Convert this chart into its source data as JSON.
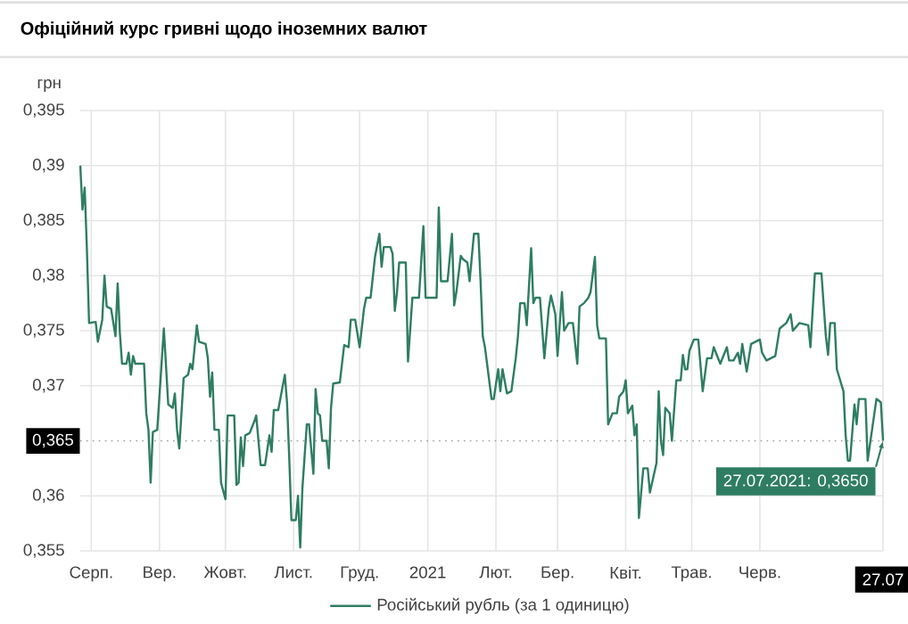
{
  "chart_data": {
    "type": "line",
    "title": "Офіційний курс гривні щодо іноземних валют",
    "ylabel": "грн",
    "xlim": [
      "2020-07-27",
      "2021-07-27"
    ],
    "ylim": [
      0.355,
      0.395
    ],
    "xticks": [
      {
        "value": "2020-08-01",
        "label": "Серп."
      },
      {
        "value": "2020-09-01",
        "label": "Вер."
      },
      {
        "value": "2020-10-01",
        "label": "Жовт."
      },
      {
        "value": "2020-11-01",
        "label": "Лист."
      },
      {
        "value": "2020-12-01",
        "label": "Груд."
      },
      {
        "value": "2021-01-01",
        "label": "2021"
      },
      {
        "value": "2021-02-01",
        "label": "Лют."
      },
      {
        "value": "2021-03-01",
        "label": "Бер."
      },
      {
        "value": "2021-04-01",
        "label": "Квіт."
      },
      {
        "value": "2021-05-01",
        "label": "Трав."
      },
      {
        "value": "2021-06-01",
        "label": "Черв."
      },
      {
        "value": "2021-07-27",
        "label": "27.07"
      }
    ],
    "yticks": [
      {
        "value": 0.355,
        "label": "0,355"
      },
      {
        "value": 0.36,
        "label": "0,36"
      },
      {
        "value": 0.37,
        "label": "0,37"
      },
      {
        "value": 0.375,
        "label": "0,375"
      },
      {
        "value": 0.38,
        "label": "0,38"
      },
      {
        "value": 0.385,
        "label": "0,385"
      },
      {
        "value": 0.39,
        "label": "0,39"
      },
      {
        "value": 0.395,
        "label": "0,395"
      }
    ],
    "grid": true,
    "legend": "bottom",
    "line_style": "solid",
    "ref_lines": [
      {
        "axis": "y",
        "value": 0.365,
        "label": "0,365",
        "color": "#9e9e9e",
        "line_style": "dotted"
      }
    ],
    "annotations": [
      {
        "text": "27.07.2021: 0,3650",
        "x": "2021-07-27",
        "y": 0.365
      }
    ],
    "series": [
      {
        "name": "Російський рубль (за 1 одиницю)",
        "color": "#2e7d62",
        "x": [
          "2020-07-27",
          "2020-07-28",
          "2020-07-29",
          "2020-07-30",
          "2020-07-31",
          "2020-08-03",
          "2020-08-04",
          "2020-08-06",
          "2020-08-07",
          "2020-08-08",
          "2020-08-10",
          "2020-08-12",
          "2020-08-13",
          "2020-08-14",
          "2020-08-15",
          "2020-08-17",
          "2020-08-18",
          "2020-08-19",
          "2020-08-20",
          "2020-08-21",
          "2020-08-25",
          "2020-08-26",
          "2020-08-27",
          "2020-08-28",
          "2020-08-29",
          "2020-08-31",
          "2020-09-03",
          "2020-09-05",
          "2020-09-07",
          "2020-09-08",
          "2020-09-09",
          "2020-09-10",
          "2020-09-12",
          "2020-09-14",
          "2020-09-15",
          "2020-09-16",
          "2020-09-18",
          "2020-09-19",
          "2020-09-22",
          "2020-09-23",
          "2020-09-24",
          "2020-09-25",
          "2020-09-26",
          "2020-09-28",
          "2020-09-29",
          "2020-10-01",
          "2020-10-02",
          "2020-10-05",
          "2020-10-06",
          "2020-10-07",
          "2020-10-08",
          "2020-10-09",
          "2020-10-10",
          "2020-10-12",
          "2020-10-14",
          "2020-10-15",
          "2020-10-17",
          "2020-10-19",
          "2020-10-21",
          "2020-10-22",
          "2020-10-23",
          "2020-10-25",
          "2020-10-28",
          "2020-10-29",
          "2020-10-30",
          "2020-10-31",
          "2020-11-02",
          "2020-11-03",
          "2020-11-04",
          "2020-11-05",
          "2020-11-07",
          "2020-11-08",
          "2020-11-10",
          "2020-11-11",
          "2020-11-12",
          "2020-11-13",
          "2020-11-14",
          "2020-11-16",
          "2020-11-17",
          "2020-11-18",
          "2020-11-19",
          "2020-11-22",
          "2020-11-24",
          "2020-11-26",
          "2020-11-27",
          "2020-11-29",
          "2020-12-01",
          "2020-12-03",
          "2020-12-04",
          "2020-12-06",
          "2020-12-08",
          "2020-12-10",
          "2020-12-11",
          "2020-12-12",
          "2020-12-15",
          "2020-12-16",
          "2020-12-17",
          "2020-12-18",
          "2020-12-19",
          "2020-12-22",
          "2020-12-23",
          "2020-12-25",
          "2020-12-28",
          "2020-12-30",
          "2020-12-31",
          "2021-01-05",
          "2021-01-06",
          "2021-01-07",
          "2021-01-10",
          "2021-01-12",
          "2021-01-13",
          "2021-01-14",
          "2021-01-16",
          "2021-01-17",
          "2021-01-19",
          "2021-01-20",
          "2021-01-22",
          "2021-01-24",
          "2021-01-25",
          "2021-01-26",
          "2021-01-27",
          "2021-01-30",
          "2021-01-31",
          "2021-02-02",
          "2021-02-03",
          "2021-02-04",
          "2021-02-06",
          "2021-02-08",
          "2021-02-10",
          "2021-02-11",
          "2021-02-12",
          "2021-02-14",
          "2021-02-15",
          "2021-02-17",
          "2021-02-18",
          "2021-02-19",
          "2021-02-21",
          "2021-02-23",
          "2021-02-25",
          "2021-02-26",
          "2021-02-28",
          "2021-03-01",
          "2021-03-03",
          "2021-03-04",
          "2021-03-06",
          "2021-03-08",
          "2021-03-10",
          "2021-03-11",
          "2021-03-13",
          "2021-03-15",
          "2021-03-16",
          "2021-03-18",
          "2021-03-19",
          "2021-03-20",
          "2021-03-23",
          "2021-03-24",
          "2021-03-26",
          "2021-03-28",
          "2021-03-29",
          "2021-03-31",
          "2021-04-01",
          "2021-04-02",
          "2021-04-04",
          "2021-04-05",
          "2021-04-06",
          "2021-04-07",
          "2021-04-09",
          "2021-04-11",
          "2021-04-12",
          "2021-04-15",
          "2021-04-16",
          "2021-04-17",
          "2021-04-18",
          "2021-04-19",
          "2021-04-21",
          "2021-04-22",
          "2021-04-24",
          "2021-04-26",
          "2021-04-27",
          "2021-04-28",
          "2021-04-29",
          "2021-04-30",
          "2021-05-02",
          "2021-05-04",
          "2021-05-06",
          "2021-05-08",
          "2021-05-10",
          "2021-05-11",
          "2021-05-14",
          "2021-05-17",
          "2021-05-18",
          "2021-05-20",
          "2021-05-22",
          "2021-05-23",
          "2021-05-24",
          "2021-05-26",
          "2021-05-28",
          "2021-06-01",
          "2021-06-02",
          "2021-06-04",
          "2021-06-08",
          "2021-06-10",
          "2021-06-13",
          "2021-06-15",
          "2021-06-16",
          "2021-06-19",
          "2021-06-23",
          "2021-06-24",
          "2021-06-26",
          "2021-06-29",
          "2021-07-01",
          "2021-07-02",
          "2021-07-03",
          "2021-07-05",
          "2021-07-06",
          "2021-07-09",
          "2021-07-10",
          "2021-07-11",
          "2021-07-12",
          "2021-07-14",
          "2021-07-15",
          "2021-07-16",
          "2021-07-19",
          "2021-07-20",
          "2021-07-22",
          "2021-07-24",
          "2021-07-26",
          "2021-07-27"
        ],
        "values": [
          0.39,
          0.386,
          0.388,
          0.3825,
          0.3757,
          0.3758,
          0.374,
          0.376,
          0.38,
          0.3772,
          0.377,
          0.3745,
          0.3793,
          0.3748,
          0.372,
          0.372,
          0.373,
          0.371,
          0.3727,
          0.372,
          0.372,
          0.3675,
          0.366,
          0.3612,
          0.3658,
          0.366,
          0.3752,
          0.3683,
          0.368,
          0.3693,
          0.366,
          0.3643,
          0.3707,
          0.371,
          0.372,
          0.3715,
          0.3755,
          0.374,
          0.3738,
          0.3725,
          0.369,
          0.3712,
          0.366,
          0.366,
          0.3612,
          0.3597,
          0.3673,
          0.3673,
          0.361,
          0.3612,
          0.3653,
          0.3627,
          0.3655,
          0.3657,
          0.3667,
          0.3673,
          0.3628,
          0.3628,
          0.3655,
          0.364,
          0.3678,
          0.3678,
          0.371,
          0.3685,
          0.3635,
          0.3578,
          0.3578,
          0.36,
          0.3553,
          0.3607,
          0.3665,
          0.3665,
          0.362,
          0.3697,
          0.3675,
          0.3673,
          0.365,
          0.365,
          0.3625,
          0.368,
          0.3702,
          0.3703,
          0.3737,
          0.3735,
          0.376,
          0.376,
          0.3735,
          0.377,
          0.378,
          0.378,
          0.3817,
          0.3838,
          0.3808,
          0.3826,
          0.3826,
          0.382,
          0.3768,
          0.3785,
          0.3812,
          0.3812,
          0.3722,
          0.378,
          0.378,
          0.3845,
          0.378,
          0.378,
          0.3862,
          0.3795,
          0.3795,
          0.3838,
          0.3773,
          0.3785,
          0.3818,
          0.3815,
          0.3812,
          0.3795,
          0.3838,
          0.3838,
          0.3795,
          0.3745,
          0.3735,
          0.3688,
          0.3688,
          0.3715,
          0.3695,
          0.3715,
          0.3693,
          0.3695,
          0.3725,
          0.3745,
          0.3775,
          0.3775,
          0.3755,
          0.3825,
          0.3775,
          0.378,
          0.378,
          0.3725,
          0.377,
          0.3782,
          0.3765,
          0.3727,
          0.3785,
          0.375,
          0.3757,
          0.3757,
          0.372,
          0.3772,
          0.3775,
          0.378,
          0.3785,
          0.3817,
          0.3755,
          0.3743,
          0.3743,
          0.3665,
          0.3675,
          0.3675,
          0.369,
          0.3695,
          0.3705,
          0.3675,
          0.3682,
          0.3655,
          0.3665,
          0.358,
          0.3625,
          0.3625,
          0.3603,
          0.363,
          0.3695,
          0.365,
          0.3637,
          0.368,
          0.3675,
          0.365,
          0.3705,
          0.3705,
          0.3728,
          0.3715,
          0.3715,
          0.3732,
          0.3742,
          0.3742,
          0.3695,
          0.3725,
          0.3725,
          0.3735,
          0.372,
          0.3735,
          0.3723,
          0.3723,
          0.373,
          0.372,
          0.3738,
          0.3713,
          0.3738,
          0.3742,
          0.373,
          0.3723,
          0.3727,
          0.3752,
          0.3757,
          0.3765,
          0.375,
          0.3757,
          0.3755,
          0.3735,
          0.3802,
          0.3802,
          0.3745,
          0.3728,
          0.3757,
          0.3757,
          0.3715,
          0.3695,
          0.3655,
          0.3632,
          0.3632,
          0.3683,
          0.3665,
          0.3688,
          0.3688,
          0.3632,
          0.366,
          0.3688,
          0.3685,
          0.365
        ]
      }
    ]
  }
}
